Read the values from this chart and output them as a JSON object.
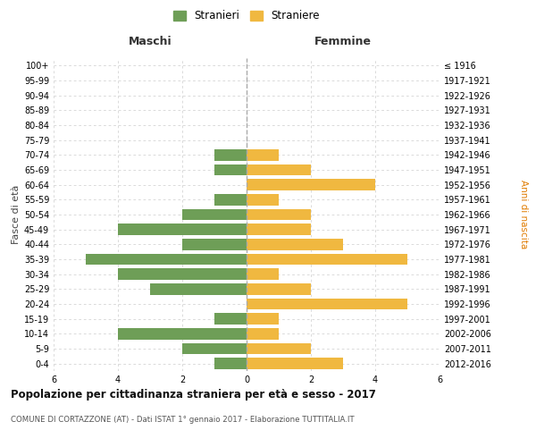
{
  "age_groups": [
    "0-4",
    "5-9",
    "10-14",
    "15-19",
    "20-24",
    "25-29",
    "30-34",
    "35-39",
    "40-44",
    "45-49",
    "50-54",
    "55-59",
    "60-64",
    "65-69",
    "70-74",
    "75-79",
    "80-84",
    "85-89",
    "90-94",
    "95-99",
    "100+"
  ],
  "birth_years": [
    "2012-2016",
    "2007-2011",
    "2002-2006",
    "1997-2001",
    "1992-1996",
    "1987-1991",
    "1982-1986",
    "1977-1981",
    "1972-1976",
    "1967-1971",
    "1962-1966",
    "1957-1961",
    "1952-1956",
    "1947-1951",
    "1942-1946",
    "1937-1941",
    "1932-1936",
    "1927-1931",
    "1922-1926",
    "1917-1921",
    "≤ 1916"
  ],
  "maschi": [
    1,
    2,
    4,
    1,
    0,
    3,
    4,
    5,
    2,
    4,
    2,
    1,
    0,
    1,
    1,
    0,
    0,
    0,
    0,
    0,
    0
  ],
  "femmine": [
    3,
    2,
    1,
    1,
    5,
    2,
    1,
    5,
    3,
    2,
    2,
    1,
    4,
    2,
    1,
    0,
    0,
    0,
    0,
    0,
    0
  ],
  "maschi_color": "#6e9e57",
  "femmine_color": "#f0b840",
  "title": "Popolazione per cittadinanza straniera per età e sesso - 2017",
  "subtitle": "COMUNE DI CORTAZZONE (AT) - Dati ISTAT 1° gennaio 2017 - Elaborazione TUTTITALIA.IT",
  "xlabel_left": "Maschi",
  "xlabel_right": "Femmine",
  "ylabel_left": "Fasce di età",
  "ylabel_right": "Anni di nascita",
  "legend_maschi": "Stranieri",
  "legend_femmine": "Straniere",
  "xlim": 6,
  "background_color": "#ffffff",
  "grid_color": "#cccccc",
  "dashed_line_color": "#aaaaaa"
}
